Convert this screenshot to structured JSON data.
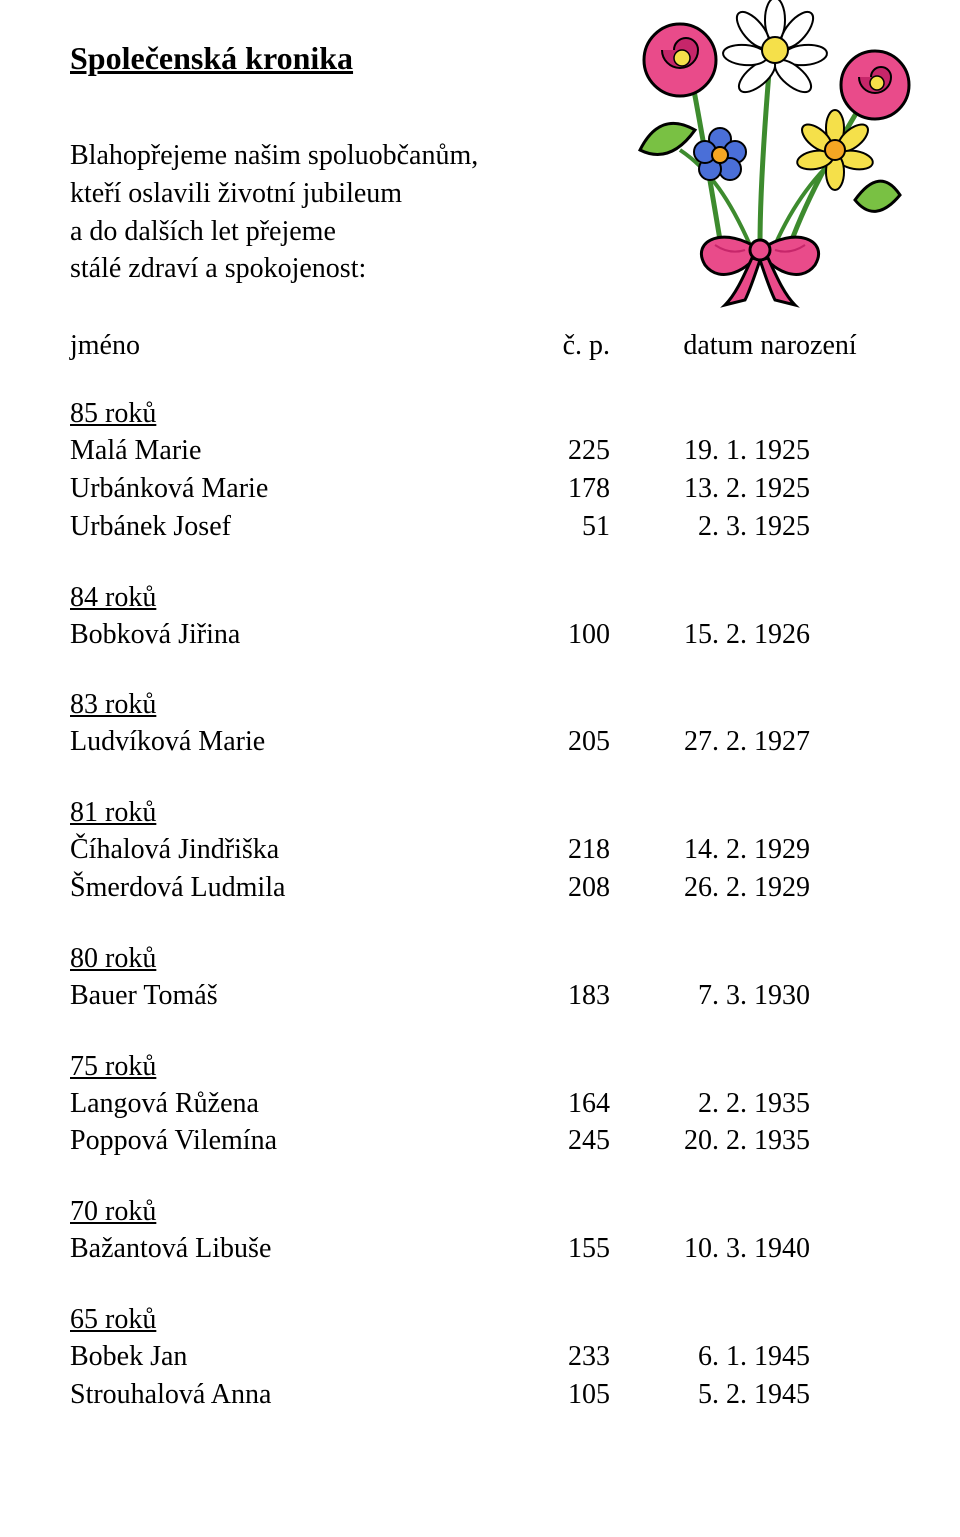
{
  "title": "Společenská kronika",
  "intro_lines": [
    "Blahopřejeme našim spoluobčanům,",
    "kteří oslavili životní jubileum",
    "a do dalších let přejeme",
    "stálé zdraví a spokojenost:"
  ],
  "header": {
    "name": "jméno",
    "cp": "č. p.",
    "date": "datum narození"
  },
  "sections": [
    {
      "title": "85 roků",
      "rows": [
        {
          "name": "Malá Marie",
          "cp": "225",
          "date": "19. 1. 1925"
        },
        {
          "name": "Urbánková Marie",
          "cp": "178",
          "date": "13. 2. 1925"
        },
        {
          "name": "Urbánek Josef",
          "cp": "51",
          "date": "2. 3. 1925"
        }
      ]
    },
    {
      "title": "84 roků",
      "rows": [
        {
          "name": "Bobková Jiřina",
          "cp": "100",
          "date": "15. 2. 1926"
        }
      ]
    },
    {
      "title": "83 roků",
      "rows": [
        {
          "name": "Ludvíková Marie",
          "cp": "205",
          "date": "27. 2. 1927"
        }
      ]
    },
    {
      "title": "81 roků",
      "rows": [
        {
          "name": "Číhalová Jindřiška",
          "cp": "218",
          "date": "14. 2. 1929"
        },
        {
          "name": "Šmerdová Ludmila",
          "cp": "208",
          "date": "26. 2. 1929"
        }
      ]
    },
    {
      "title": "80 roků",
      "rows": [
        {
          "name": "Bauer Tomáš",
          "cp": "183",
          "date": "7. 3. 1930"
        }
      ]
    },
    {
      "title": "75 roků",
      "rows": [
        {
          "name": "Langová Růžena",
          "cp": "164",
          "date": "2. 2. 1935"
        },
        {
          "name": "Poppová Vilemína",
          "cp": "245",
          "date": "20. 2. 1935"
        }
      ]
    },
    {
      "title": "70 roků",
      "rows": [
        {
          "name": "Bažantová Libuše",
          "cp": "155",
          "date": "10. 3. 1940"
        }
      ]
    },
    {
      "title": "65 roků",
      "rows": [
        {
          "name": "Bobek Jan",
          "cp": "233",
          "date": "6. 1. 1945"
        },
        {
          "name": "Strouhalová Anna",
          "cp": "105",
          "date": "5. 2. 1945"
        }
      ]
    }
  ],
  "flower_colors": {
    "pink": "#e94b8a",
    "pink_dark": "#c6266a",
    "yellow": "#f5e04a",
    "white": "#ffffff",
    "blue": "#4a6fd8",
    "blue_dark": "#2a4acb",
    "orange": "#f5a623",
    "green_leaf": "#79c143",
    "green_dark": "#3d8b2e",
    "bow": "#e94b8a",
    "stroke": "#000000"
  }
}
